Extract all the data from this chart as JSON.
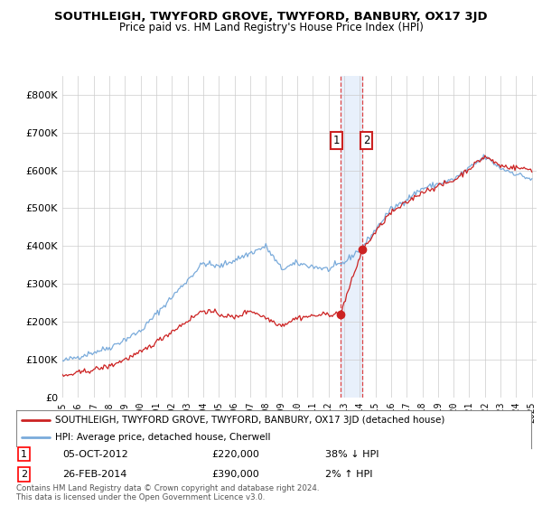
{
  "title": "SOUTHLEIGH, TWYFORD GROVE, TWYFORD, BANBURY, OX17 3JD",
  "subtitle": "Price paid vs. HM Land Registry's House Price Index (HPI)",
  "ylim": [
    0,
    850000
  ],
  "yticks": [
    0,
    100000,
    200000,
    300000,
    400000,
    500000,
    600000,
    700000,
    800000
  ],
  "ytick_labels": [
    "£0",
    "£100K",
    "£200K",
    "£300K",
    "£400K",
    "£500K",
    "£600K",
    "£700K",
    "£800K"
  ],
  "hpi_color": "#7aabdb",
  "price_color": "#cc2222",
  "sale1_x": 2012.76,
  "sale2_x": 2014.17,
  "sale1_price": 220000,
  "sale2_price": 390000,
  "sale1_date": "05-OCT-2012",
  "sale2_date": "26-FEB-2014",
  "sale1_pct": "38% ↓ HPI",
  "sale2_pct": "2% ↑ HPI",
  "legend1": "SOUTHLEIGH, TWYFORD GROVE, TWYFORD, BANBURY, OX17 3JD (detached house)",
  "legend2": "HPI: Average price, detached house, Cherwell",
  "footnote": "Contains HM Land Registry data © Crown copyright and database right 2024.\nThis data is licensed under the Open Government Licence v3.0.",
  "background_color": "#ffffff",
  "grid_color": "#cccccc",
  "shade_color": "#e8f0fb"
}
